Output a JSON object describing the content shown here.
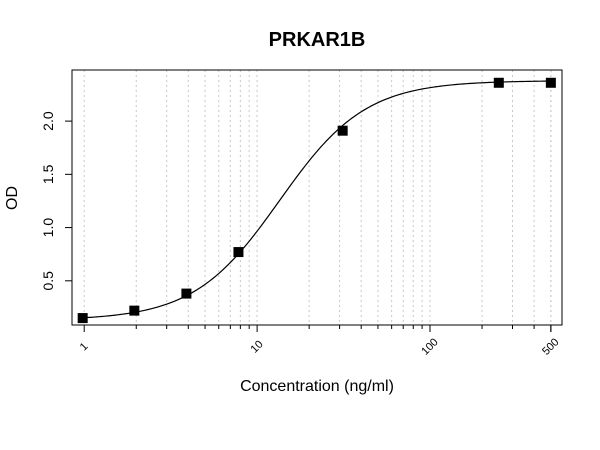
{
  "chart_data": {
    "type": "scatter",
    "title": "PRKAR1B",
    "xlabel": "Concentration (ng/ml)",
    "ylabel": "OD",
    "x_scale": "log",
    "xlim": [
      0.85,
      580
    ],
    "ylim": [
      0.085,
      2.48
    ],
    "x_ticks": [
      1,
      10,
      100,
      500
    ],
    "x_tick_labels": [
      "1",
      "10",
      "100",
      "500"
    ],
    "y_ticks": [
      0.5,
      1.0,
      1.5,
      2.0
    ],
    "y_tick_labels": [
      "0.5",
      "1.0",
      "1.5",
      "2.0"
    ],
    "grid": "vertical dotted lines at log minor ticks",
    "series": [
      {
        "marker": "square",
        "color": "#000000",
        "points": [
          {
            "x": 0.98,
            "y": 0.15
          },
          {
            "x": 1.95,
            "y": 0.22
          },
          {
            "x": 3.9,
            "y": 0.38
          },
          {
            "x": 7.8,
            "y": 0.77
          },
          {
            "x": 31.25,
            "y": 1.91
          },
          {
            "x": 250,
            "y": 2.36
          },
          {
            "x": 500,
            "y": 2.36
          }
        ]
      }
    ],
    "fit_curve": {
      "type": "4PL",
      "bottom": 0.13,
      "top": 2.38,
      "ec50": 13.5,
      "hill": 1.75
    }
  }
}
